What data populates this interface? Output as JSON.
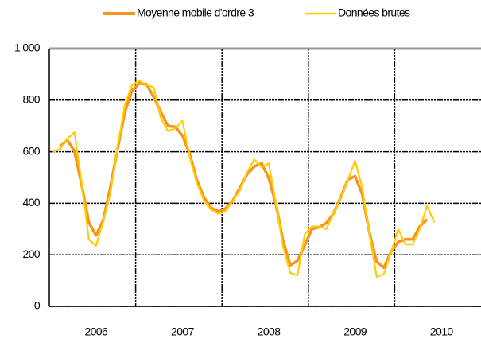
{
  "chart_data": {
    "type": "line",
    "categories": [
      null,
      null,
      null,
      null,
      null,
      null,
      "2006",
      null,
      null,
      null,
      null,
      null,
      null,
      null,
      null,
      null,
      null,
      null,
      "2007",
      null,
      null,
      null,
      null,
      null,
      null,
      null,
      null,
      null,
      null,
      null,
      "2008",
      null,
      null,
      null,
      null,
      null,
      null,
      null,
      null,
      null,
      null,
      null,
      "2009",
      null,
      null,
      null,
      null,
      null,
      null,
      null,
      null,
      null,
      null,
      null,
      "2010",
      null,
      null,
      null,
      null,
      null
    ],
    "series": [
      {
        "name": "Moyenne mobile d'ordre 3",
        "color": "#f7941d",
        "values": [
          null,
          620,
          645,
          602,
          472,
          325,
          275,
          335,
          463,
          613,
          753,
          838,
          865,
          862,
          813,
          753,
          700,
          697,
          663,
          593,
          490,
          422,
          382,
          368,
          380,
          410,
          460,
          513,
          543,
          555,
          498,
          395,
          253,
          160,
          177,
          237,
          300,
          307,
          323,
          360,
          423,
          492,
          505,
          435,
          285,
          173,
          150,
          212,
          250,
          260,
          260,
          310,
          338,
          null,
          null,
          null,
          null,
          null,
          null,
          null
        ]
      },
      {
        "name": "Données brutes",
        "color": "#ffcc00",
        "values": [
          600,
          610,
          650,
          675,
          480,
          260,
          235,
          330,
          440,
          620,
          780,
          860,
          875,
          860,
          850,
          730,
          680,
          690,
          720,
          580,
          480,
          410,
          375,
          360,
          370,
          410,
          450,
          520,
          570,
          540,
          555,
          400,
          230,
          130,
          120,
          280,
          310,
          310,
          300,
          360,
          420,
          490,
          565,
          460,
          280,
          115,
          125,
          210,
          300,
          240,
          240,
          300,
          390,
          325,
          null,
          null,
          null,
          null,
          null,
          null
        ]
      }
    ],
    "ylim": [
      0,
      1000
    ],
    "yticks": [
      0,
      200,
      400,
      600,
      800,
      {
        "value": 1000,
        "label": "1 000"
      }
    ],
    "grid": true,
    "legend": "top"
  }
}
